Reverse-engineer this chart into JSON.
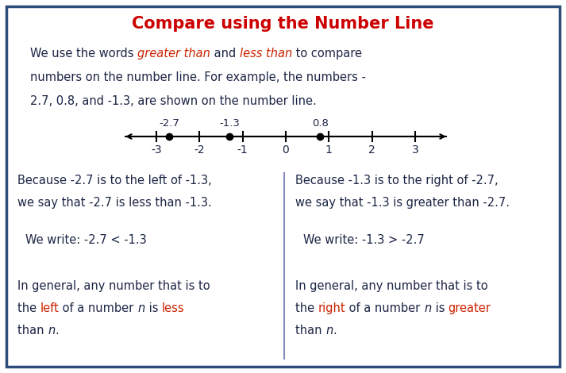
{
  "title": "Compare using the Number Line",
  "title_color": "#cc0000",
  "title_fontsize": 15,
  "border_color": "#2e4a7a",
  "background_color": "#ffffff",
  "number_line": {
    "ticks": [
      -3,
      -2,
      -1,
      0,
      1,
      2,
      3
    ],
    "points": [
      -2.7,
      -1.3,
      0.8
    ],
    "point_labels": [
      "-2.7",
      "-1.3",
      "0.8"
    ]
  },
  "red_color": "#cc2200",
  "dark_color": "#1c2545",
  "divider_color": "#8888bb",
  "text_fontsize": 10.5,
  "nl_label_fontsize": 9.5,
  "nl_tick_fontsize": 10
}
